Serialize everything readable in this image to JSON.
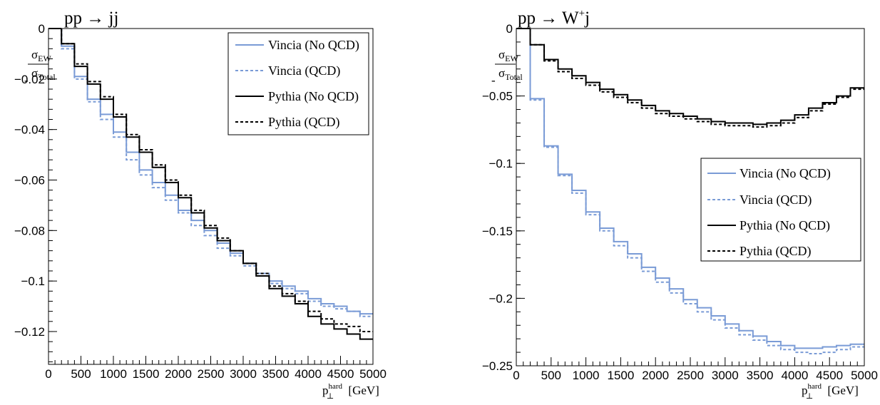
{
  "chart_data": [
    {
      "type": "line",
      "title": "pp → jj",
      "xlabel": "p⊥hard [GeV]",
      "xlabel_main": "p",
      "xlabel_sub": "⊥",
      "xlabel_sup": "hard",
      "xlabel_unit": "[GeV]",
      "ylabel": "-σEW/σTotal",
      "ylabel_num": "σ",
      "ylabel_num_sub": "EW",
      "ylabel_den": "σ",
      "ylabel_den_sub": "Total",
      "ylabel_sign": "-",
      "xlim": [
        0,
        5000
      ],
      "ylim": [
        -0.133,
        0
      ],
      "x_ticks": [
        "0",
        "500",
        "1000",
        "1500",
        "2000",
        "2500",
        "3000",
        "3500",
        "4000",
        "4500",
        "5000"
      ],
      "y_ticks": [
        "0",
        "−0.02",
        "−0.04",
        "−0.06",
        "−0.08",
        "−0.1",
        "−0.12"
      ],
      "y_tick_values": [
        0,
        -0.02,
        -0.04,
        -0.06,
        -0.08,
        -0.1,
        -0.12
      ],
      "legend_position": "top-right",
      "bin_edges": [
        200,
        400,
        600,
        800,
        1000,
        1200,
        1400,
        1600,
        1800,
        2000,
        2200,
        2400,
        2600,
        2800,
        3000,
        3200,
        3400,
        3600,
        3800,
        4000,
        4200,
        4400,
        4600,
        4800,
        5000
      ],
      "series": [
        {
          "name": "Vincia (No QCD)",
          "color": "#7a9bd6",
          "dash": "solid",
          "values": [
            -0.007,
            -0.019,
            -0.028,
            -0.034,
            -0.041,
            -0.049,
            -0.056,
            -0.061,
            -0.066,
            -0.072,
            -0.076,
            -0.08,
            -0.085,
            -0.089,
            -0.093,
            -0.097,
            -0.1,
            -0.102,
            -0.104,
            -0.107,
            -0.109,
            -0.11,
            -0.112,
            -0.113
          ]
        },
        {
          "name": "Vincia (QCD)",
          "color": "#7a9bd6",
          "dash": "dashed",
          "values": [
            -0.008,
            -0.02,
            -0.029,
            -0.036,
            -0.043,
            -0.052,
            -0.058,
            -0.063,
            -0.068,
            -0.073,
            -0.078,
            -0.082,
            -0.087,
            -0.09,
            -0.094,
            -0.097,
            -0.101,
            -0.103,
            -0.105,
            -0.108,
            -0.11,
            -0.111,
            -0.112,
            -0.114
          ]
        },
        {
          "name": "Pythia (No QCD)",
          "color": "#000000",
          "dash": "solid",
          "values": [
            -0.006,
            -0.015,
            -0.022,
            -0.028,
            -0.035,
            -0.043,
            -0.049,
            -0.055,
            -0.061,
            -0.067,
            -0.073,
            -0.079,
            -0.084,
            -0.088,
            -0.093,
            -0.098,
            -0.103,
            -0.106,
            -0.109,
            -0.114,
            -0.117,
            -0.119,
            -0.121,
            -0.123
          ]
        },
        {
          "name": "Pythia (QCD)",
          "color": "#000000",
          "dash": "dashed",
          "values": [
            -0.006,
            -0.014,
            -0.021,
            -0.027,
            -0.034,
            -0.042,
            -0.048,
            -0.054,
            -0.06,
            -0.066,
            -0.072,
            -0.078,
            -0.083,
            -0.088,
            -0.093,
            -0.097,
            -0.102,
            -0.105,
            -0.108,
            -0.112,
            -0.115,
            -0.117,
            -0.118,
            -0.12
          ]
        }
      ]
    },
    {
      "type": "line",
      "title": "pp → W+j",
      "title_main": "pp → W",
      "title_sup": "+",
      "title_tail": "j",
      "xlabel": "p⊥hard [GeV]",
      "xlabel_main": "p",
      "xlabel_sub": "⊥",
      "xlabel_sup": "hard",
      "xlabel_unit": "[GeV]",
      "ylabel": "-σEW/σTotal",
      "ylabel_num": "σ",
      "ylabel_num_sub": "EW",
      "ylabel_den": "σ",
      "ylabel_den_sub": "Total",
      "ylabel_sign": "-",
      "xlim": [
        0,
        5000
      ],
      "ylim": [
        -0.25,
        0
      ],
      "x_ticks": [
        "0",
        "500",
        "1000",
        "1500",
        "2000",
        "2500",
        "3000",
        "3500",
        "4000",
        "4500",
        "5000"
      ],
      "y_ticks": [
        "0",
        "−0.05",
        "−0.1",
        "−0.15",
        "−0.2",
        "−0.25"
      ],
      "y_tick_values": [
        0,
        -0.05,
        -0.1,
        -0.15,
        -0.2,
        -0.25
      ],
      "legend_position": "center-right",
      "bin_edges": [
        200,
        400,
        600,
        800,
        1000,
        1200,
        1400,
        1600,
        1800,
        2000,
        2200,
        2400,
        2600,
        2800,
        3000,
        3200,
        3400,
        3600,
        3800,
        4000,
        4200,
        4400,
        4600,
        4800,
        5000
      ],
      "series": [
        {
          "name": "Vincia (No QCD)",
          "color": "#7a9bd6",
          "dash": "solid",
          "values": [
            -0.052,
            -0.087,
            -0.108,
            -0.12,
            -0.136,
            -0.148,
            -0.158,
            -0.167,
            -0.177,
            -0.185,
            -0.193,
            -0.201,
            -0.207,
            -0.213,
            -0.219,
            -0.224,
            -0.228,
            -0.232,
            -0.235,
            -0.237,
            -0.237,
            -0.236,
            -0.235,
            -0.234
          ]
        },
        {
          "name": "Vincia (QCD)",
          "color": "#7a9bd6",
          "dash": "dashed",
          "values": [
            -0.053,
            -0.088,
            -0.109,
            -0.122,
            -0.138,
            -0.15,
            -0.161,
            -0.17,
            -0.18,
            -0.188,
            -0.196,
            -0.204,
            -0.21,
            -0.216,
            -0.222,
            -0.227,
            -0.231,
            -0.235,
            -0.238,
            -0.24,
            -0.241,
            -0.24,
            -0.238,
            -0.236
          ]
        },
        {
          "name": "Pythia (No QCD)",
          "color": "#000000",
          "dash": "solid",
          "values": [
            -0.012,
            -0.023,
            -0.03,
            -0.035,
            -0.04,
            -0.045,
            -0.049,
            -0.053,
            -0.057,
            -0.061,
            -0.063,
            -0.065,
            -0.067,
            -0.069,
            -0.07,
            -0.07,
            -0.071,
            -0.07,
            -0.068,
            -0.064,
            -0.059,
            -0.055,
            -0.05,
            -0.044
          ]
        },
        {
          "name": "Pythia (QCD)",
          "color": "#000000",
          "dash": "dashed",
          "values": [
            -0.012,
            -0.024,
            -0.032,
            -0.037,
            -0.042,
            -0.047,
            -0.051,
            -0.055,
            -0.059,
            -0.063,
            -0.065,
            -0.067,
            -0.069,
            -0.071,
            -0.072,
            -0.072,
            -0.073,
            -0.072,
            -0.07,
            -0.066,
            -0.061,
            -0.056,
            -0.051,
            -0.045
          ]
        }
      ]
    }
  ]
}
